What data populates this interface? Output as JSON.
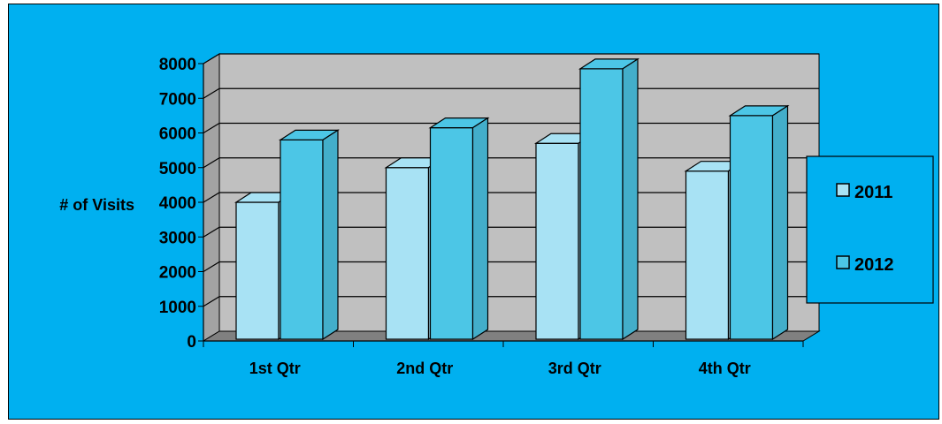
{
  "chart_data": {
    "type": "bar",
    "title": "",
    "xlabel": "",
    "ylabel": "# of Visits",
    "ylim": [
      0,
      8000
    ],
    "y_ticks": [
      "0",
      "1000",
      "2000",
      "3000",
      "4000",
      "5000",
      "6000",
      "7000",
      "8000"
    ],
    "categories": [
      "1st Qtr",
      "2nd Qtr",
      "3rd Qtr",
      "4th Qtr"
    ],
    "series": [
      {
        "name": "2011",
        "values": [
          4000,
          5000,
          5700,
          4900
        ],
        "color": "#a8e2f4"
      },
      {
        "name": "2012",
        "values": [
          5800,
          6150,
          7850,
          6500
        ],
        "color": "#4cc6e6"
      }
    ],
    "grid": true,
    "legend_position": "right",
    "style": "3d-clustered-column",
    "colors": {
      "background": "#00b0f0",
      "plot_wall": "#c0c0c0",
      "floor": "#808080"
    }
  }
}
